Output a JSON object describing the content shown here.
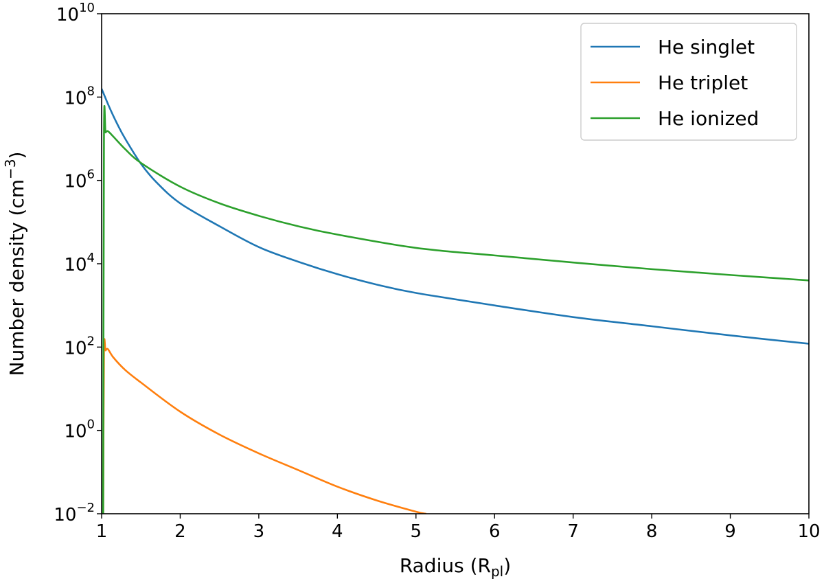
{
  "chart_data": {
    "type": "line",
    "xlabel": "Radius (R",
    "xlabel_sub": "pl",
    "xlabel_close": ")",
    "ylabel": "Number density (cm",
    "ylabel_sup": "−3",
    "ylabel_close": ")",
    "xlim": [
      1,
      10
    ],
    "ylim_log10": [
      -2,
      10
    ],
    "yscale": "log",
    "x_ticks": [
      "1",
      "2",
      "3",
      "4",
      "5",
      "6",
      "7",
      "8",
      "9",
      "10"
    ],
    "y_ticks": [
      {
        "base": "10",
        "exp": "10",
        "value": 10
      },
      {
        "base": "10",
        "exp": "8",
        "value": 8
      },
      {
        "base": "10",
        "exp": "6",
        "value": 6
      },
      {
        "base": "10",
        "exp": "4",
        "value": 4
      },
      {
        "base": "10",
        "exp": "2",
        "value": 2
      },
      {
        "base": "10",
        "exp": "0",
        "value": 0
      },
      {
        "base": "10",
        "exp": "−2",
        "value": -2
      }
    ],
    "grid": false,
    "legend_position": "top-right",
    "series": [
      {
        "name": "He singlet",
        "color": "#1f77b4",
        "points_log10": [
          [
            1.0,
            8.2
          ],
          [
            1.1,
            7.75
          ],
          [
            1.2,
            7.35
          ],
          [
            1.3,
            7.0
          ],
          [
            1.5,
            6.4
          ],
          [
            1.7,
            5.95
          ],
          [
            2.0,
            5.45
          ],
          [
            2.5,
            4.9
          ],
          [
            3.0,
            4.4
          ],
          [
            3.5,
            4.05
          ],
          [
            4.0,
            3.75
          ],
          [
            4.5,
            3.5
          ],
          [
            5.0,
            3.3
          ],
          [
            6.0,
            3.0
          ],
          [
            7.0,
            2.72
          ],
          [
            8.0,
            2.5
          ],
          [
            9.0,
            2.28
          ],
          [
            10.0,
            2.08
          ]
        ]
      },
      {
        "name": "He triplet",
        "color": "#ff7f0e",
        "points_log10": [
          [
            1.02,
            -2.0
          ],
          [
            1.03,
            1.9
          ],
          [
            1.05,
            1.92
          ],
          [
            1.08,
            1.95
          ],
          [
            1.15,
            1.75
          ],
          [
            1.3,
            1.45
          ],
          [
            1.5,
            1.15
          ],
          [
            2.0,
            0.45
          ],
          [
            2.5,
            -0.1
          ],
          [
            3.0,
            -0.55
          ],
          [
            3.5,
            -0.95
          ],
          [
            4.0,
            -1.35
          ],
          [
            4.5,
            -1.68
          ],
          [
            5.0,
            -1.95
          ],
          [
            5.13,
            -2.0
          ]
        ]
      },
      {
        "name": "He ionized",
        "color": "#2ca02c",
        "points_log10": [
          [
            1.02,
            -2.0
          ],
          [
            1.03,
            7.1
          ],
          [
            1.05,
            7.15
          ],
          [
            1.08,
            7.18
          ],
          [
            1.15,
            7.05
          ],
          [
            1.3,
            6.75
          ],
          [
            1.5,
            6.42
          ],
          [
            2.0,
            5.85
          ],
          [
            2.5,
            5.45
          ],
          [
            3.0,
            5.15
          ],
          [
            3.5,
            4.9
          ],
          [
            4.0,
            4.7
          ],
          [
            5.0,
            4.38
          ],
          [
            6.0,
            4.2
          ],
          [
            7.0,
            4.03
          ],
          [
            8.0,
            3.87
          ],
          [
            9.0,
            3.73
          ],
          [
            10.0,
            3.6
          ]
        ]
      }
    ]
  }
}
